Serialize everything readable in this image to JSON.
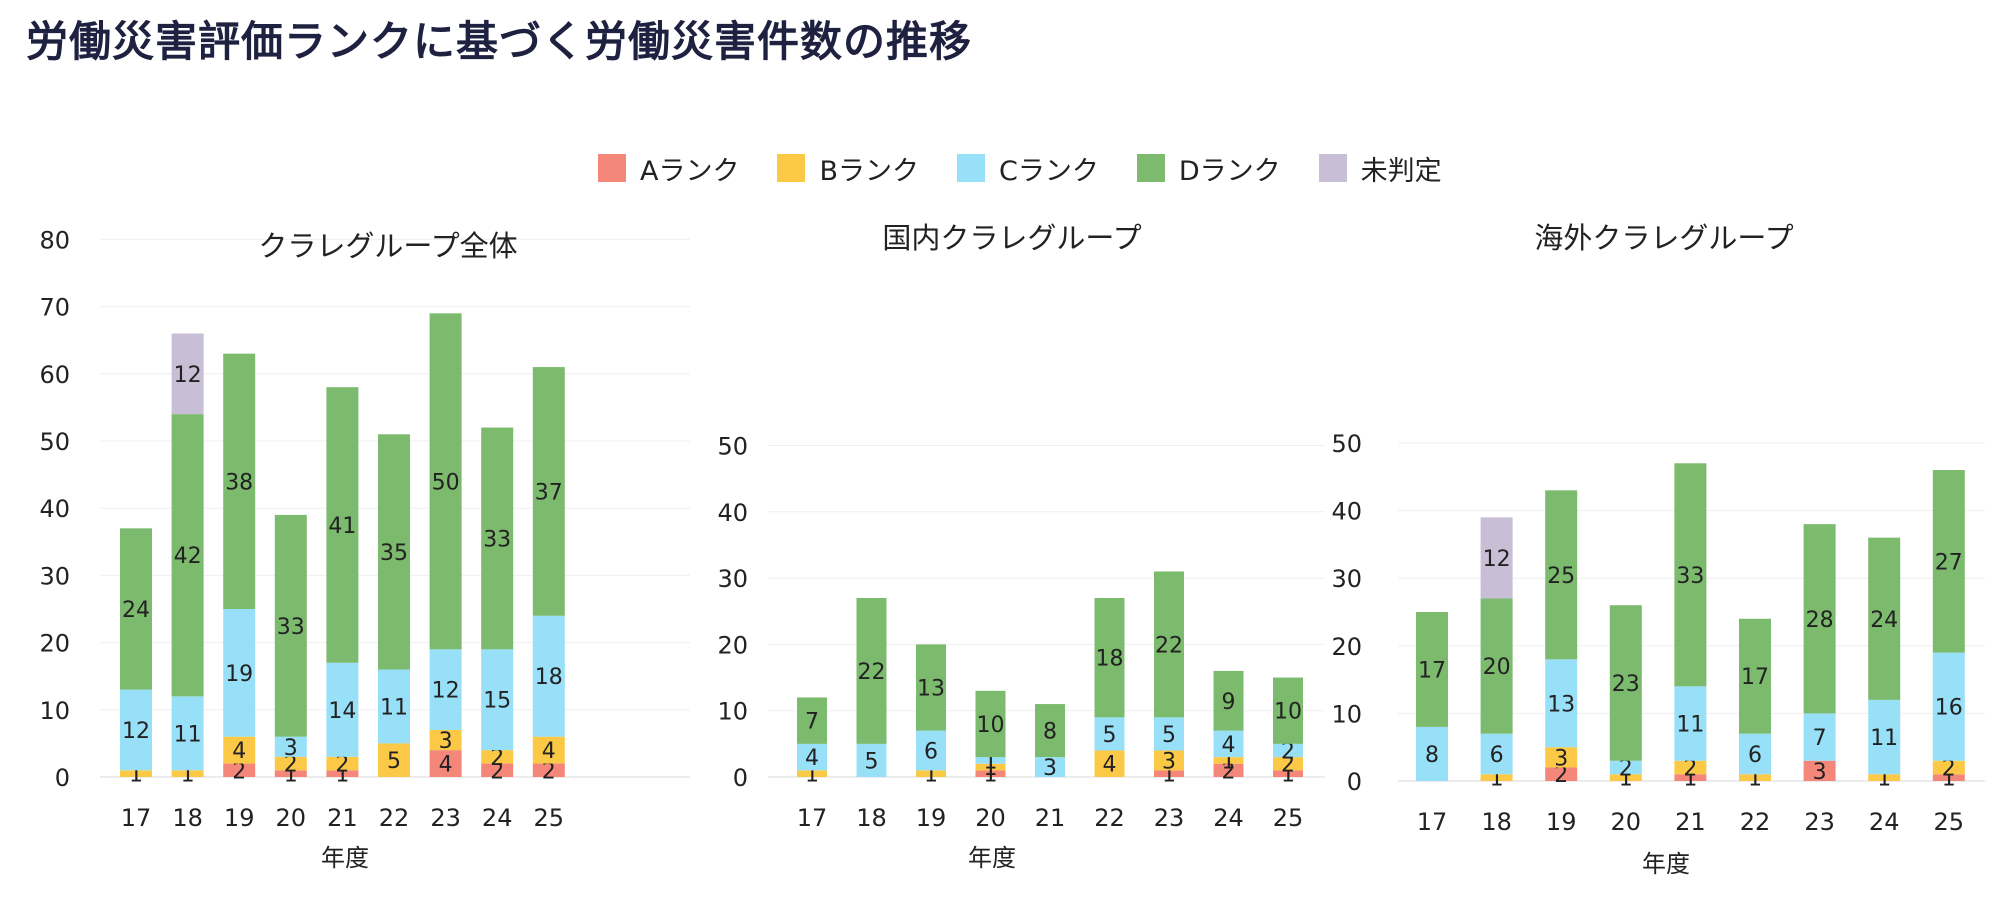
{
  "title": "労働災害評価ランクに基づく労働災害件数の推移",
  "legend": [
    {
      "name": "Aランク",
      "color": "#f4877a"
    },
    {
      "name": "Bランク",
      "color": "#fcc946"
    },
    {
      "name": "Cランク",
      "color": "#98e0f8"
    },
    {
      "name": "Dランク",
      "color": "#7cba6e"
    },
    {
      "name": "未判定",
      "color": "#c8bfd6"
    }
  ],
  "chart_data": [
    {
      "type": "bar",
      "stacked": true,
      "title": "クラレグループ全体",
      "xlabel": "年度",
      "ylabel": "",
      "ylim": [
        0,
        80
      ],
      "yticks": [
        0,
        10,
        20,
        30,
        40,
        50,
        60,
        70,
        80
      ],
      "categories": [
        "17",
        "18",
        "19",
        "20",
        "21",
        "22",
        "23",
        "24",
        "25"
      ],
      "series": [
        {
          "name": "Aランク",
          "values": [
            0,
            0,
            2,
            1,
            1,
            0,
            4,
            2,
            2
          ]
        },
        {
          "name": "Bランク",
          "values": [
            1,
            1,
            4,
            2,
            2,
            5,
            3,
            2,
            4
          ]
        },
        {
          "name": "Cランク",
          "values": [
            12,
            11,
            19,
            3,
            14,
            11,
            12,
            15,
            18
          ]
        },
        {
          "name": "Dランク",
          "values": [
            24,
            42,
            38,
            33,
            41,
            35,
            50,
            33,
            37
          ]
        },
        {
          "name": "未判定",
          "values": [
            0,
            12,
            0,
            0,
            0,
            0,
            0,
            0,
            0
          ]
        }
      ]
    },
    {
      "type": "bar",
      "stacked": true,
      "title": "国内クラレグループ",
      "xlabel": "年度",
      "ylabel": "",
      "ylim": [
        0,
        50
      ],
      "yticks": [
        0,
        10,
        20,
        30,
        40,
        50
      ],
      "categories": [
        "17",
        "18",
        "19",
        "20",
        "21",
        "22",
        "23",
        "24",
        "25"
      ],
      "series": [
        {
          "name": "Aランク",
          "values": [
            0,
            0,
            0,
            1,
            0,
            0,
            1,
            2,
            1
          ]
        },
        {
          "name": "Bランク",
          "values": [
            1,
            0,
            1,
            1,
            0,
            4,
            3,
            1,
            2
          ]
        },
        {
          "name": "Cランク",
          "values": [
            4,
            5,
            6,
            1,
            3,
            5,
            5,
            4,
            2
          ]
        },
        {
          "name": "Dランク",
          "values": [
            7,
            22,
            13,
            10,
            8,
            18,
            22,
            9,
            10
          ]
        },
        {
          "name": "未判定",
          "values": [
            0,
            0,
            0,
            0,
            0,
            0,
            0,
            0,
            0
          ]
        }
      ]
    },
    {
      "type": "bar",
      "stacked": true,
      "title": "海外クラレグループ",
      "xlabel": "年度",
      "ylabel": "",
      "ylim": [
        0,
        50
      ],
      "yticks": [
        0,
        10,
        20,
        30,
        40,
        50
      ],
      "categories": [
        "17",
        "18",
        "19",
        "20",
        "21",
        "22",
        "23",
        "24",
        "25"
      ],
      "series": [
        {
          "name": "Aランク",
          "values": [
            0,
            0,
            2,
            0,
            1,
            0,
            3,
            0,
            1
          ]
        },
        {
          "name": "Bランク",
          "values": [
            0,
            1,
            3,
            1,
            2,
            1,
            0,
            1,
            2
          ]
        },
        {
          "name": "Cランク",
          "values": [
            8,
            6,
            13,
            2,
            11,
            6,
            7,
            11,
            16
          ]
        },
        {
          "name": "Dランク",
          "values": [
            17,
            20,
            25,
            23,
            33,
            17,
            28,
            24,
            27
          ]
        },
        {
          "name": "未判定",
          "values": [
            0,
            12,
            0,
            0,
            0,
            0,
            0,
            0,
            0
          ]
        }
      ]
    }
  ]
}
